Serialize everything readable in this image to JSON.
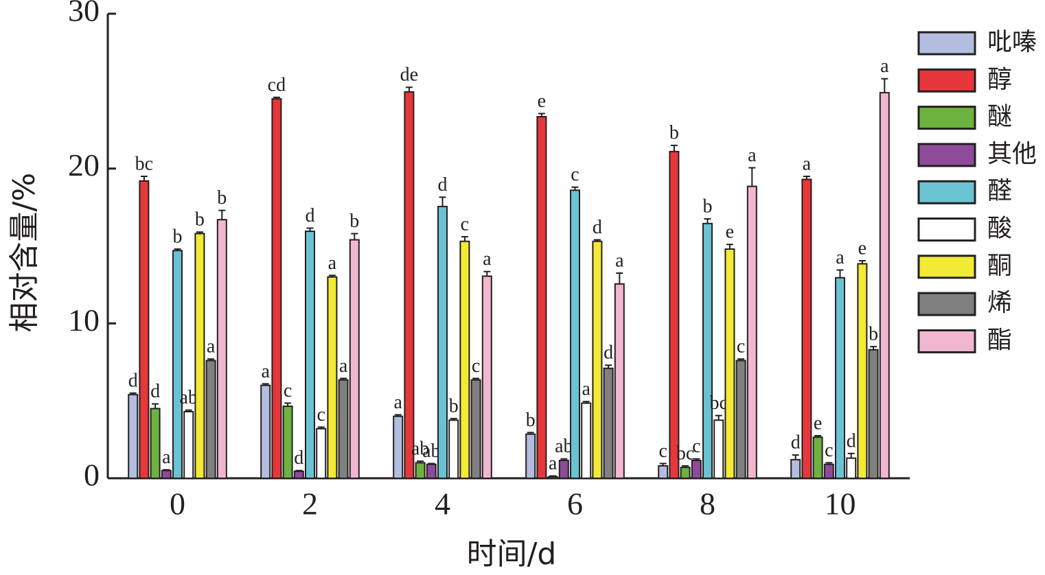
{
  "chart_data": {
    "type": "bar",
    "ylabel": "相对含量/%",
    "xlabel": "时间/d",
    "categories": [
      "0",
      "2",
      "4",
      "6",
      "8",
      "10"
    ],
    "ylim": [
      0,
      30
    ],
    "yticks": [
      0,
      10,
      20,
      30
    ],
    "series": [
      {
        "name": "吡嗪",
        "color": "#b3bde0",
        "values": [
          5.4,
          6.0,
          4.0,
          2.85,
          0.8,
          1.2
        ],
        "errors": [
          0.1,
          0.1,
          0.1,
          0.1,
          0.15,
          0.3
        ],
        "labels": [
          "d",
          "a",
          "a",
          "b",
          "c",
          "d"
        ]
      },
      {
        "name": "醇",
        "color": "#e8373a",
        "values": [
          19.2,
          24.5,
          24.95,
          23.35,
          21.1,
          19.3
        ],
        "errors": [
          0.3,
          0.1,
          0.3,
          0.2,
          0.4,
          0.2
        ],
        "labels": [
          "bc",
          "cd",
          "de",
          "e",
          "b",
          "a"
        ]
      },
      {
        "name": "醚",
        "color": "#6db33f",
        "values": [
          4.5,
          4.65,
          1.0,
          0.1,
          0.7,
          2.65
        ],
        "errors": [
          0.3,
          0.2,
          0.1,
          0.05,
          0.1,
          0.1
        ],
        "labels": [
          "d",
          "c",
          "ab",
          "a",
          "bc",
          "e"
        ]
      },
      {
        "name": "其他",
        "color": "#8e4a9b",
        "values": [
          0.5,
          0.45,
          0.9,
          1.15,
          1.15,
          0.9
        ],
        "errors": [
          0.05,
          0.05,
          0.05,
          0.1,
          0.1,
          0.1
        ],
        "labels": [
          "a",
          "d",
          "ab",
          "ab",
          "c",
          "c"
        ]
      },
      {
        "name": "醛",
        "color": "#6ac3d3",
        "values": [
          14.7,
          15.95,
          17.55,
          18.6,
          16.45,
          12.95
        ],
        "errors": [
          0.1,
          0.2,
          0.6,
          0.2,
          0.3,
          0.5
        ],
        "labels": [
          "b",
          "d",
          "d",
          "c",
          "b",
          "a"
        ]
      },
      {
        "name": "酸",
        "color": "#ffffff",
        "values": [
          4.3,
          3.2,
          3.75,
          4.85,
          3.75,
          1.3
        ],
        "errors": [
          0.1,
          0.1,
          0.1,
          0.1,
          0.3,
          0.3
        ],
        "labels": [
          "ab",
          "c",
          "b",
          "a",
          "bc",
          "d"
        ]
      },
      {
        "name": "酮",
        "color": "#f2ea33",
        "values": [
          15.8,
          13.0,
          15.3,
          15.3,
          14.8,
          13.85
        ],
        "errors": [
          0.1,
          0.1,
          0.3,
          0.1,
          0.3,
          0.2
        ],
        "labels": [
          "b",
          "a",
          "c",
          "d",
          "e",
          "e"
        ]
      },
      {
        "name": "烯",
        "color": "#808080",
        "values": [
          7.6,
          6.35,
          6.35,
          7.1,
          7.6,
          8.3
        ],
        "errors": [
          0.1,
          0.1,
          0.1,
          0.2,
          0.1,
          0.2
        ],
        "labels": [
          "a",
          "a",
          "c",
          "d",
          "c",
          "b"
        ]
      },
      {
        "name": "酯",
        "color": "#f2b7d0",
        "values": [
          16.7,
          15.4,
          13.05,
          12.55,
          18.85,
          24.9
        ],
        "errors": [
          0.6,
          0.4,
          0.3,
          0.7,
          1.2,
          0.9
        ],
        "labels": [
          "b",
          "b",
          "a",
          "a",
          "a",
          "a"
        ]
      }
    ]
  }
}
